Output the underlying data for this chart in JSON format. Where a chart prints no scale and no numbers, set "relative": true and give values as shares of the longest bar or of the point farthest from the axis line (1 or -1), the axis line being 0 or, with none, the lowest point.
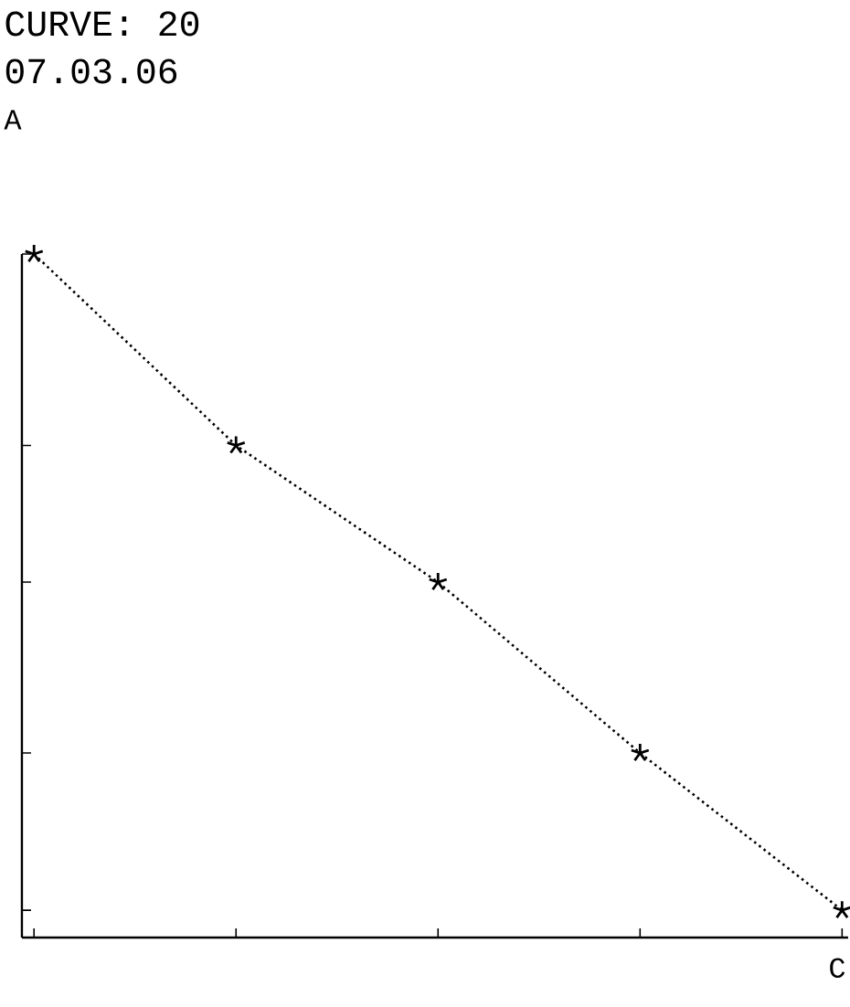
{
  "chart_data": {
    "type": "line",
    "title": "CURVE:    20",
    "subtitle": "07.03.06",
    "ylabel": "A",
    "xlabel": "C",
    "relative": true,
    "marker": "cross",
    "line_style": "dotted",
    "categories": [
      null,
      null,
      null,
      null,
      null
    ],
    "series": [
      {
        "color": "#000000",
        "values": [
          1,
          0.72,
          0.52,
          0.27,
          0.04
        ]
      }
    ]
  }
}
